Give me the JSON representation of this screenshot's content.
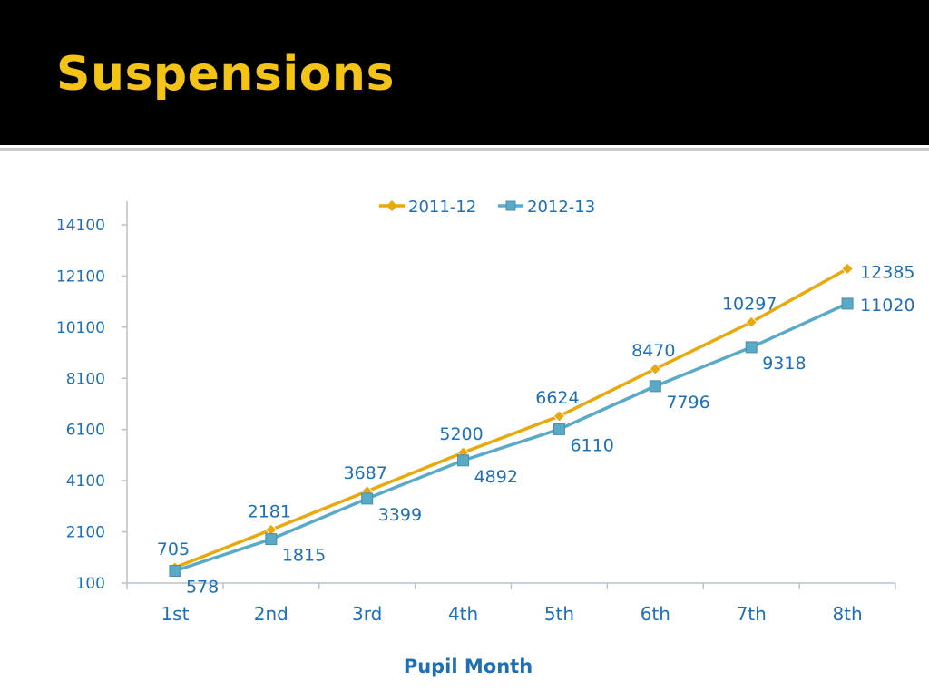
{
  "slide": {
    "title": "Suspensions"
  },
  "colors": {
    "title": "#f3c318",
    "series_2011": "#e8a90e",
    "series_2012": "#5aaac7",
    "text": "#1f6fb5",
    "axis": "#b9c3cc"
  },
  "chart_data": {
    "type": "line",
    "categories": [
      "1st",
      "2nd",
      "3rd",
      "4th",
      "5th",
      "6th",
      "7th",
      "8th"
    ],
    "series": [
      {
        "name": "2011-12",
        "marker": "diamond",
        "values": [
          705,
          2181,
          3687,
          5200,
          6624,
          8470,
          10297,
          12385
        ]
      },
      {
        "name": "2012-13",
        "marker": "square",
        "values": [
          578,
          1815,
          3399,
          4892,
          6110,
          7796,
          9318,
          11020
        ]
      }
    ],
    "xlabel": "Pupil Month",
    "ylabel": "",
    "yticks": [
      100,
      2100,
      4100,
      6100,
      8100,
      10100,
      12100,
      14100
    ],
    "ylim": [
      100,
      14100
    ],
    "legend": "top-center",
    "data_labels": true,
    "grid": false
  }
}
